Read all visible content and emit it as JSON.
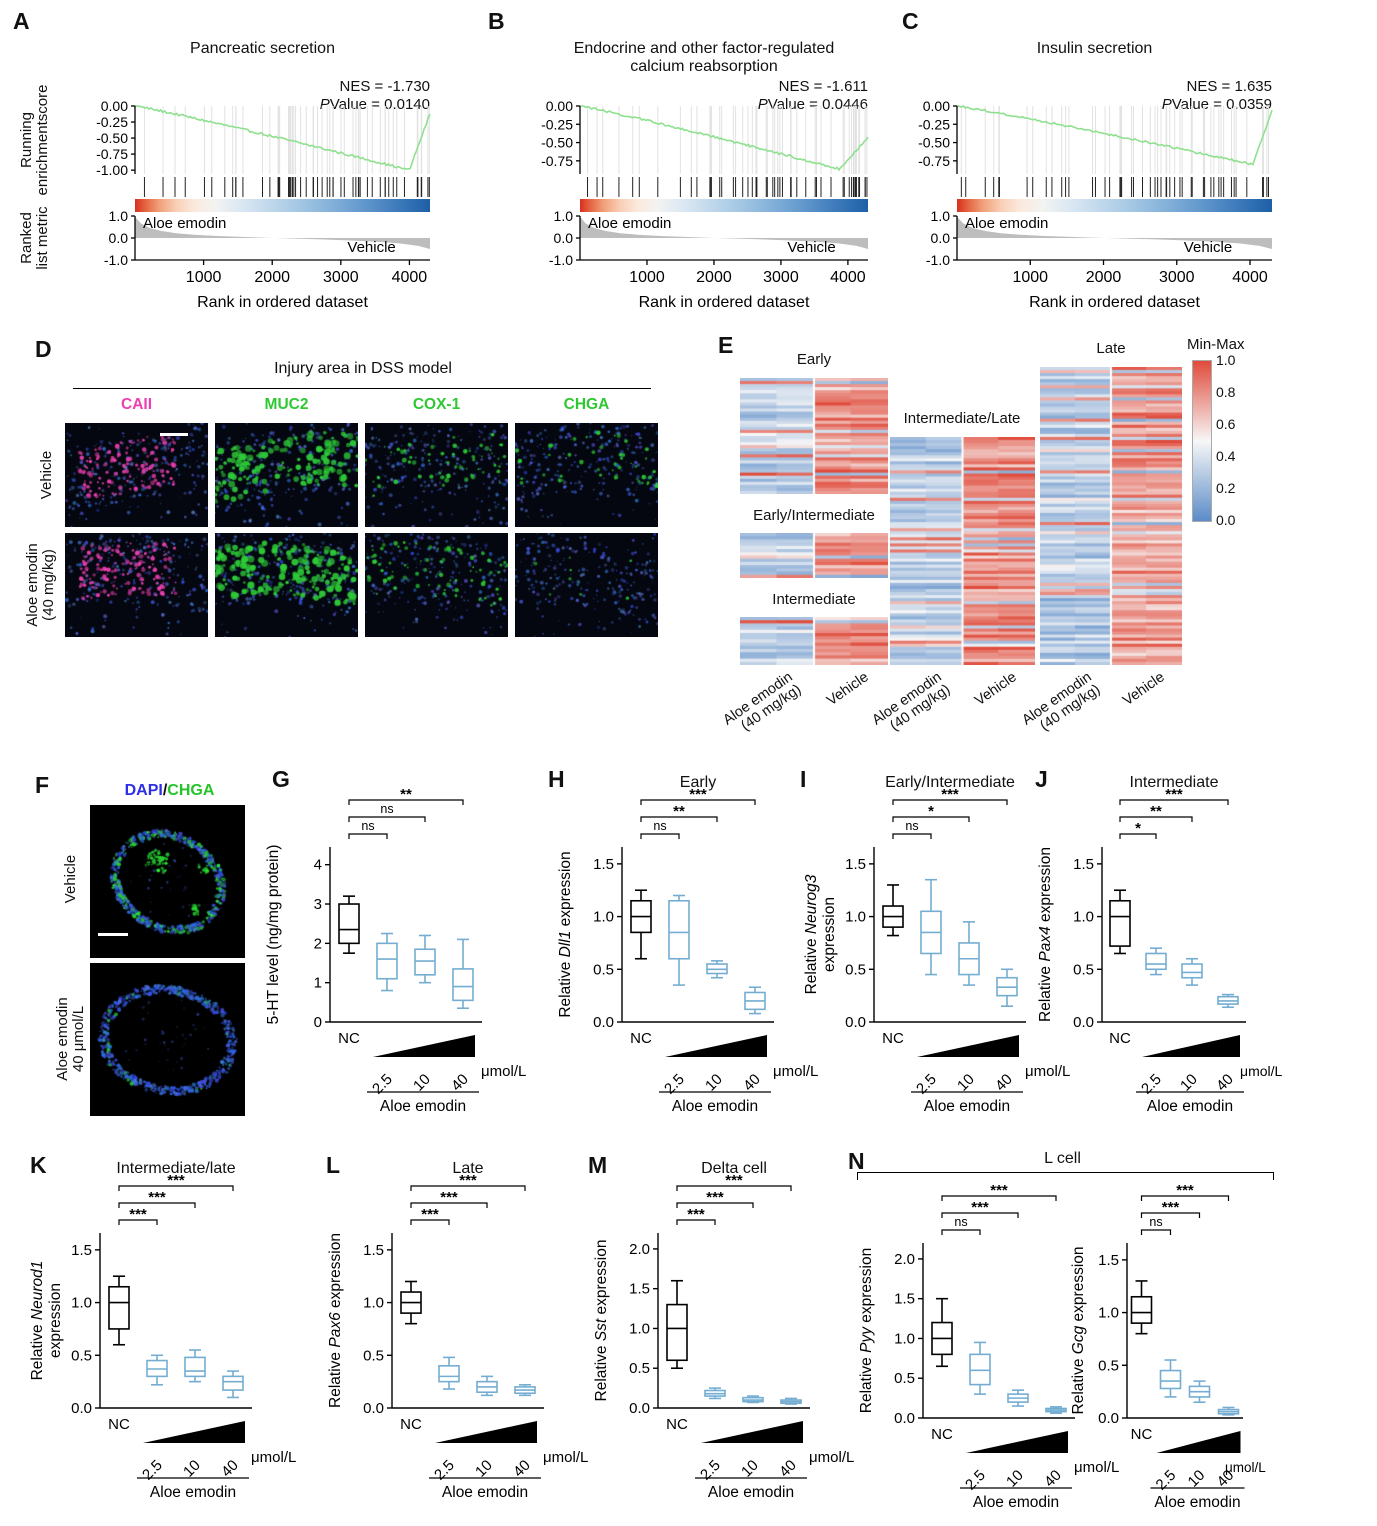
{
  "figure": {
    "bg": "#ffffff"
  },
  "chart_data": {
    "gsea": [
      {
        "letter": "A",
        "title_lines": [
          "Pancreatic secretion"
        ],
        "nes": "NES = -1.730",
        "p_italic": "P",
        "p_rest": "Value = 0.0140",
        "ylabel_top_lines": [
          "Running",
          "enrichmentscore"
        ],
        "ylabel_bottom_lines": [
          "Ranked",
          "list metric"
        ],
        "es_tick_labels": [
          "0.00",
          "-0.25",
          "-0.50",
          "-0.75",
          "-1.00"
        ],
        "es_tick_vals": [
          0,
          -0.25,
          -0.5,
          -0.75,
          -1.0
        ],
        "es_scale_min": -1.06,
        "curve": {
          "depth": 1.0,
          "tmin": 0.93,
          "end": -0.12,
          "color": "#8fe08f"
        },
        "metric_tick_labels": [
          "1.0",
          "0.0",
          "-1.0"
        ],
        "metric_tick_vals": [
          1,
          0,
          -1
        ],
        "group_high": "Aloe emodin",
        "group_low": "Vehicle",
        "x_tick_labels": [
          "1000",
          "2000",
          "3000",
          "4000"
        ],
        "x_tick_vals": [
          1000,
          2000,
          3000,
          4000
        ],
        "x_max": 4300,
        "xlabel": "Rank in ordered dataset",
        "hits": 56
      },
      {
        "letter": "B",
        "title_lines": [
          "Endocrine and other factor-regulated",
          "calcium reabsorption"
        ],
        "nes": "NES = -1.611",
        "p_italic": "P",
        "p_rest": "Value = 0.0446",
        "es_tick_labels": [
          "0.00",
          "-0.25",
          "-0.50",
          "-0.75"
        ],
        "es_tick_vals": [
          0,
          -0.25,
          -0.5,
          -0.75
        ],
        "es_scale_min": -0.93,
        "curve": {
          "depth": 0.86,
          "tmin": 0.9,
          "end": -0.44,
          "color": "#8fe08f"
        },
        "metric_tick_labels": [
          "1.0",
          "0.0",
          "-1.0"
        ],
        "metric_tick_vals": [
          1,
          0,
          -1
        ],
        "group_high": "Aloe emodin",
        "group_low": "Vehicle",
        "x_tick_labels": [
          "1000",
          "2000",
          "3000",
          "4000"
        ],
        "x_tick_vals": [
          1000,
          2000,
          3000,
          4000
        ],
        "x_max": 4300,
        "xlabel": "Rank in ordered dataset",
        "hits": 52
      },
      {
        "letter": "C",
        "title_lines": [
          "Insulin secretion"
        ],
        "nes": "NES = 1.635",
        "p_italic": "P",
        "p_rest": "Value = 0.0359",
        "es_tick_labels": [
          "0.00",
          "-0.25",
          "-0.50",
          "-0.75"
        ],
        "es_tick_vals": [
          0,
          -0.25,
          -0.5,
          -0.75
        ],
        "es_scale_min": -0.93,
        "curve": {
          "depth": 0.8,
          "tmin": 0.94,
          "end": -0.05,
          "color": "#8fe08f"
        },
        "metric_tick_labels": [
          "1.0",
          "0.0",
          "-1.0"
        ],
        "metric_tick_vals": [
          1,
          0,
          -1
        ],
        "group_high": "Aloe emodin",
        "group_low": "Vehicle",
        "x_tick_labels": [
          "1000",
          "2000",
          "3000",
          "4000"
        ],
        "x_tick_vals": [
          1000,
          2000,
          3000,
          4000
        ],
        "x_max": 4300,
        "xlabel": "Rank in ordered dataset",
        "hits": 50
      }
    ],
    "dss": {
      "letter": "D",
      "title": "Injury area in DSS model",
      "columns": [
        {
          "label": "CAII",
          "color": "#ee3fae"
        },
        {
          "label": "MUC2",
          "color": "#2fc832"
        },
        {
          "label": "COX-1",
          "color": "#2fc832"
        },
        {
          "label": "CHGA",
          "color": "#2fc832"
        }
      ],
      "rows": [
        {
          "lines": [
            "Vehicle"
          ]
        },
        {
          "lines": [
            "Aloe emodin",
            "(40 mg/kg)"
          ]
        }
      ],
      "images": [
        {
          "channel": "#e83fae",
          "density": 130,
          "pattern": "band"
        },
        {
          "channel": "#2ecc38",
          "density": 160,
          "pattern": "blobs"
        },
        {
          "channel": "#2ecc38",
          "density": 60,
          "pattern": "sparse"
        },
        {
          "channel": "#2ecc38",
          "density": 45,
          "pattern": "sparse"
        },
        {
          "channel": "#e83fae",
          "density": 150,
          "pattern": "band"
        },
        {
          "channel": "#2ecc38",
          "density": 200,
          "pattern": "blobs"
        },
        {
          "channel": "#2ecc38",
          "density": 80,
          "pattern": "sparse"
        },
        {
          "channel": "#2ecc38",
          "density": 8,
          "pattern": "sparse"
        }
      ]
    },
    "heatmap": {
      "letter": "E",
      "groups": [
        {
          "label": "Early",
          "rows": 38
        },
        {
          "label": "Early/Intermediate",
          "rows": 14
        },
        {
          "label": "Intermediate",
          "rows": 15
        },
        {
          "label": "Intermediate/Late",
          "rows": 75
        },
        {
          "label": "Late",
          "rows": 98
        }
      ],
      "col_labels": [
        [
          "Aloe emodin",
          "(40 mg/kg)"
        ],
        [
          "Vehicle"
        ]
      ],
      "legend": {
        "title": "Min-Max",
        "ticks": [
          "1.0",
          "0.8",
          "0.6",
          "0.4",
          "0.2",
          "0.0"
        ],
        "high": "#e04b3b",
        "mid": "#f7f7f7",
        "low": "#5b8cc8"
      }
    },
    "organoid": {
      "letter": "F",
      "title_parts": [
        {
          "t": "DAPI",
          "c": "#2e2ee6"
        },
        {
          "t": "/",
          "c": "#111111"
        },
        {
          "t": "CHGA",
          "c": "#24c42a"
        }
      ],
      "rows": [
        {
          "lines": [
            "Vehicle"
          ],
          "green": 0.3
        },
        {
          "lines": [
            "Aloe emodin",
            "40 μmol/L"
          ],
          "green": 0.05
        }
      ]
    },
    "dose_axis": {
      "nc": "NC",
      "doses": [
        "2.5",
        "10",
        "40"
      ],
      "unit": "μmol/L",
      "group": "Aloe emodin"
    },
    "lcell": {
      "letter": "N",
      "title": "L cell"
    },
    "boxplots": [
      {
        "letter": "G",
        "title": "",
        "ylabel": [
          [
            {
              "t": "5-HT level (ng/mg protein)"
            }
          ]
        ],
        "ytick_labels": [
          "0",
          "1",
          "2",
          "3",
          "4"
        ],
        "ytick_vals": [
          0,
          1,
          2,
          3,
          4
        ],
        "ymax": 4.45,
        "boxes": [
          {
            "lo": 1.75,
            "q1": 2.0,
            "med": 2.35,
            "q3": 3.0,
            "hi": 3.2
          },
          {
            "lo": 0.8,
            "q1": 1.1,
            "med": 1.6,
            "q3": 2.0,
            "hi": 2.25
          },
          {
            "lo": 1.0,
            "q1": 1.2,
            "med": 1.55,
            "q3": 1.85,
            "hi": 2.2
          },
          {
            "lo": 0.35,
            "q1": 0.55,
            "med": 0.9,
            "q3": 1.35,
            "hi": 2.1
          }
        ],
        "sig": [
          "ns",
          "ns",
          "**"
        ]
      },
      {
        "letter": "H",
        "title": "Early",
        "ylabel": [
          [
            {
              "t": "Relative "
            },
            {
              "t": "Dll1",
              "i": 1
            },
            {
              "t": " expression"
            }
          ]
        ],
        "ytick_labels": [
          "0.0",
          "0.5",
          "1.0",
          "1.5"
        ],
        "ytick_vals": [
          0,
          0.5,
          1,
          1.5
        ],
        "ymax": 1.66,
        "boxes": [
          {
            "lo": 0.6,
            "q1": 0.85,
            "med": 1.0,
            "q3": 1.15,
            "hi": 1.25
          },
          {
            "lo": 0.35,
            "q1": 0.6,
            "med": 0.85,
            "q3": 1.15,
            "hi": 1.2
          },
          {
            "lo": 0.42,
            "q1": 0.46,
            "med": 0.5,
            "q3": 0.55,
            "hi": 0.58
          },
          {
            "lo": 0.08,
            "q1": 0.12,
            "med": 0.2,
            "q3": 0.28,
            "hi": 0.33
          }
        ],
        "sig": [
          "ns",
          "**",
          "***"
        ]
      },
      {
        "letter": "I",
        "title": "Early/Intermediate",
        "ylabel": [
          [
            {
              "t": "Relative "
            },
            {
              "t": "Neurog3",
              "i": 1
            }
          ],
          [
            {
              "t": "expression"
            }
          ]
        ],
        "ytick_labels": [
          "0.0",
          "0.5",
          "1.0",
          "1.5"
        ],
        "ytick_vals": [
          0,
          0.5,
          1,
          1.5
        ],
        "ymax": 1.66,
        "boxes": [
          {
            "lo": 0.82,
            "q1": 0.9,
            "med": 1.0,
            "q3": 1.1,
            "hi": 1.3
          },
          {
            "lo": 0.45,
            "q1": 0.65,
            "med": 0.85,
            "q3": 1.05,
            "hi": 1.35
          },
          {
            "lo": 0.35,
            "q1": 0.45,
            "med": 0.6,
            "q3": 0.75,
            "hi": 0.95
          },
          {
            "lo": 0.15,
            "q1": 0.25,
            "med": 0.33,
            "q3": 0.42,
            "hi": 0.5
          }
        ],
        "sig": [
          "ns",
          "*",
          "***"
        ]
      },
      {
        "letter": "J",
        "title": "Intermediate",
        "ylabel": [
          [
            {
              "t": "Relative "
            },
            {
              "t": "Pax4",
              "i": 1
            },
            {
              "t": " expression"
            }
          ]
        ],
        "ytick_labels": [
          "0.0",
          "0.5",
          "1.0",
          "1.5"
        ],
        "ytick_vals": [
          0,
          0.5,
          1,
          1.5
        ],
        "ymax": 1.66,
        "boxes": [
          {
            "lo": 0.65,
            "q1": 0.72,
            "med": 1.0,
            "q3": 1.15,
            "hi": 1.25
          },
          {
            "lo": 0.45,
            "q1": 0.5,
            "med": 0.55,
            "q3": 0.65,
            "hi": 0.7
          },
          {
            "lo": 0.35,
            "q1": 0.42,
            "med": 0.47,
            "q3": 0.55,
            "hi": 0.6
          },
          {
            "lo": 0.14,
            "q1": 0.17,
            "med": 0.2,
            "q3": 0.24,
            "hi": 0.26
          }
        ],
        "sig": [
          "*",
          "**",
          "***"
        ]
      },
      {
        "letter": "K",
        "title": "Intermediate/late",
        "ylabel": [
          [
            {
              "t": "Relative "
            },
            {
              "t": "Neurod1",
              "i": 1
            }
          ],
          [
            {
              "t": "expression"
            }
          ]
        ],
        "ytick_labels": [
          "0.0",
          "0.5",
          "1.0",
          "1.5"
        ],
        "ytick_vals": [
          0,
          0.5,
          1,
          1.5
        ],
        "ymax": 1.66,
        "boxes": [
          {
            "lo": 0.6,
            "q1": 0.75,
            "med": 1.0,
            "q3": 1.15,
            "hi": 1.25
          },
          {
            "lo": 0.22,
            "q1": 0.3,
            "med": 0.37,
            "q3": 0.45,
            "hi": 0.5
          },
          {
            "lo": 0.25,
            "q1": 0.3,
            "med": 0.35,
            "q3": 0.48,
            "hi": 0.55
          },
          {
            "lo": 0.1,
            "q1": 0.17,
            "med": 0.25,
            "q3": 0.3,
            "hi": 0.35
          }
        ],
        "sig": [
          "***",
          "***",
          "***"
        ]
      },
      {
        "letter": "L",
        "title": "Late",
        "ylabel": [
          [
            {
              "t": "Relative "
            },
            {
              "t": "Pax6",
              "i": 1
            },
            {
              "t": " expression"
            }
          ]
        ],
        "ytick_labels": [
          "0.0",
          "0.5",
          "1.0",
          "1.5"
        ],
        "ytick_vals": [
          0,
          0.5,
          1,
          1.5
        ],
        "ymax": 1.66,
        "boxes": [
          {
            "lo": 0.8,
            "q1": 0.9,
            "med": 1.0,
            "q3": 1.1,
            "hi": 1.2
          },
          {
            "lo": 0.18,
            "q1": 0.25,
            "med": 0.3,
            "q3": 0.4,
            "hi": 0.48
          },
          {
            "lo": 0.12,
            "q1": 0.15,
            "med": 0.2,
            "q3": 0.25,
            "hi": 0.3
          },
          {
            "lo": 0.12,
            "q1": 0.14,
            "med": 0.17,
            "q3": 0.2,
            "hi": 0.22
          }
        ],
        "sig": [
          "***",
          "***",
          "***"
        ]
      },
      {
        "letter": "M",
        "title": "Delta cell",
        "ylabel": [
          [
            {
              "t": "Relative "
            },
            {
              "t": "Sst",
              "i": 1
            },
            {
              "t": " expression"
            }
          ]
        ],
        "ytick_labels": [
          "0.0",
          "0.5",
          "1.0",
          "1.5",
          "2.0"
        ],
        "ytick_vals": [
          0,
          0.5,
          1,
          1.5,
          2
        ],
        "ymax": 2.2,
        "boxes": [
          {
            "lo": 0.5,
            "q1": 0.6,
            "med": 1.0,
            "q3": 1.3,
            "hi": 1.6
          },
          {
            "lo": 0.12,
            "q1": 0.15,
            "med": 0.18,
            "q3": 0.22,
            "hi": 0.25
          },
          {
            "lo": 0.07,
            "q1": 0.08,
            "med": 0.1,
            "q3": 0.13,
            "hi": 0.15
          },
          {
            "lo": 0.05,
            "q1": 0.06,
            "med": 0.08,
            "q3": 0.1,
            "hi": 0.12
          }
        ],
        "sig": [
          "***",
          "***",
          "***"
        ]
      },
      {
        "letter": "",
        "title": "",
        "ylabel": [
          [
            {
              "t": "Relative "
            },
            {
              "t": "Pyy",
              "i": 1
            },
            {
              "t": " expression"
            }
          ]
        ],
        "ytick_labels": [
          "0.0",
          "0.5",
          "1.0",
          "1.5",
          "2.0"
        ],
        "ytick_vals": [
          0,
          0.5,
          1,
          1.5,
          2
        ],
        "ymax": 2.2,
        "boxes": [
          {
            "lo": 0.65,
            "q1": 0.8,
            "med": 1.0,
            "q3": 1.2,
            "hi": 1.5
          },
          {
            "lo": 0.3,
            "q1": 0.42,
            "med": 0.6,
            "q3": 0.8,
            "hi": 0.95
          },
          {
            "lo": 0.15,
            "q1": 0.2,
            "med": 0.25,
            "q3": 0.3,
            "hi": 0.35
          },
          {
            "lo": 0.06,
            "q1": 0.08,
            "med": 0.1,
            "q3": 0.12,
            "hi": 0.14
          }
        ],
        "sig": [
          "ns",
          "***",
          "***"
        ]
      },
      {
        "letter": "",
        "title": "",
        "ylabel": [
          [
            {
              "t": "Relative "
            },
            {
              "t": "Gcg",
              "i": 1
            },
            {
              "t": " expression"
            }
          ]
        ],
        "ytick_labels": [
          "0.0",
          "0.5",
          "1.0",
          "1.5"
        ],
        "ytick_vals": [
          0,
          0.5,
          1,
          1.5
        ],
        "ymax": 1.66,
        "boxes": [
          {
            "lo": 0.8,
            "q1": 0.9,
            "med": 1.0,
            "q3": 1.15,
            "hi": 1.3
          },
          {
            "lo": 0.2,
            "q1": 0.28,
            "med": 0.35,
            "q3": 0.45,
            "hi": 0.55
          },
          {
            "lo": 0.15,
            "q1": 0.2,
            "med": 0.25,
            "q3": 0.3,
            "hi": 0.35
          },
          {
            "lo": 0.03,
            "q1": 0.04,
            "med": 0.06,
            "q3": 0.08,
            "hi": 0.1
          }
        ],
        "sig": [
          "ns",
          "***",
          "***"
        ]
      }
    ]
  }
}
